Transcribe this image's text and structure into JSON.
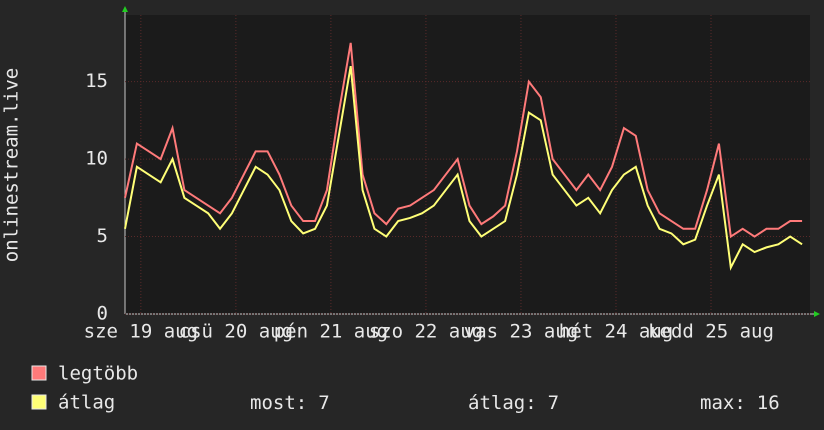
{
  "chart_data": {
    "type": "line",
    "y_label": "onlinestream.live",
    "x": [
      0,
      3,
      6,
      9,
      12,
      15,
      18,
      21,
      24,
      27,
      30,
      33,
      36,
      39,
      42,
      45,
      48,
      51,
      54,
      57,
      60,
      63,
      66,
      69,
      72,
      75,
      78,
      81,
      84,
      87,
      90,
      93,
      96,
      99,
      102,
      105,
      108,
      111,
      114,
      117,
      120,
      123,
      126,
      129,
      132,
      135,
      138,
      141,
      144,
      147,
      150,
      153,
      156,
      159,
      162,
      165,
      168,
      171
    ],
    "xlim": [
      0,
      173
    ],
    "xticks": [
      {
        "value": 4,
        "label": "sze 19 aug"
      },
      {
        "value": 28,
        "label": "csü 20 aug"
      },
      {
        "value": 52,
        "label": "pén 21 aug"
      },
      {
        "value": 76,
        "label": "szo 22 aug"
      },
      {
        "value": 100,
        "label": "vas 23 aug"
      },
      {
        "value": 124,
        "label": "hét 24 aug"
      },
      {
        "value": 148,
        "label": "kedd 25 aug"
      }
    ],
    "ylim": [
      0,
      19.3
    ],
    "yticks": [
      0,
      5,
      10,
      15
    ],
    "grid": true,
    "series": [
      {
        "name": "legtöbb",
        "color": "#ff7a7a",
        "values": [
          7.5,
          11,
          10.5,
          10,
          12,
          8,
          7.5,
          7,
          6.5,
          7.5,
          9,
          10.5,
          10.5,
          9,
          7,
          6,
          6,
          8,
          13,
          17.5,
          9,
          6.5,
          5.8,
          6.8,
          7,
          7.5,
          8,
          9,
          10,
          7,
          5.8,
          6.3,
          7,
          10.5,
          15,
          14,
          10,
          9,
          8,
          9,
          8,
          9.5,
          12,
          11.5,
          8,
          6.5,
          6,
          5.5,
          5.5,
          8,
          11,
          5,
          5.5,
          5,
          5.5,
          5.5,
          6,
          6
        ]
      },
      {
        "name": "átlag",
        "color": "#ffff77",
        "values": [
          5.5,
          9.5,
          9,
          8.5,
          10,
          7.5,
          7,
          6.5,
          5.5,
          6.5,
          8,
          9.5,
          9,
          8,
          6,
          5.2,
          5.5,
          7,
          11.5,
          16,
          8,
          5.5,
          5,
          6,
          6.2,
          6.5,
          7,
          8,
          9,
          6,
          5,
          5.5,
          6,
          9,
          13,
          12.5,
          9,
          8,
          7,
          7.5,
          6.5,
          8,
          9,
          9.5,
          7,
          5.5,
          5.2,
          4.5,
          4.8,
          7,
          9,
          3,
          4.5,
          4,
          4.3,
          4.5,
          5,
          4.5
        ]
      }
    ],
    "stats": [
      {
        "label": "most:",
        "value": 7
      },
      {
        "label": "átlag:",
        "value": 7
      },
      {
        "label": "max:",
        "value": 16
      }
    ]
  }
}
